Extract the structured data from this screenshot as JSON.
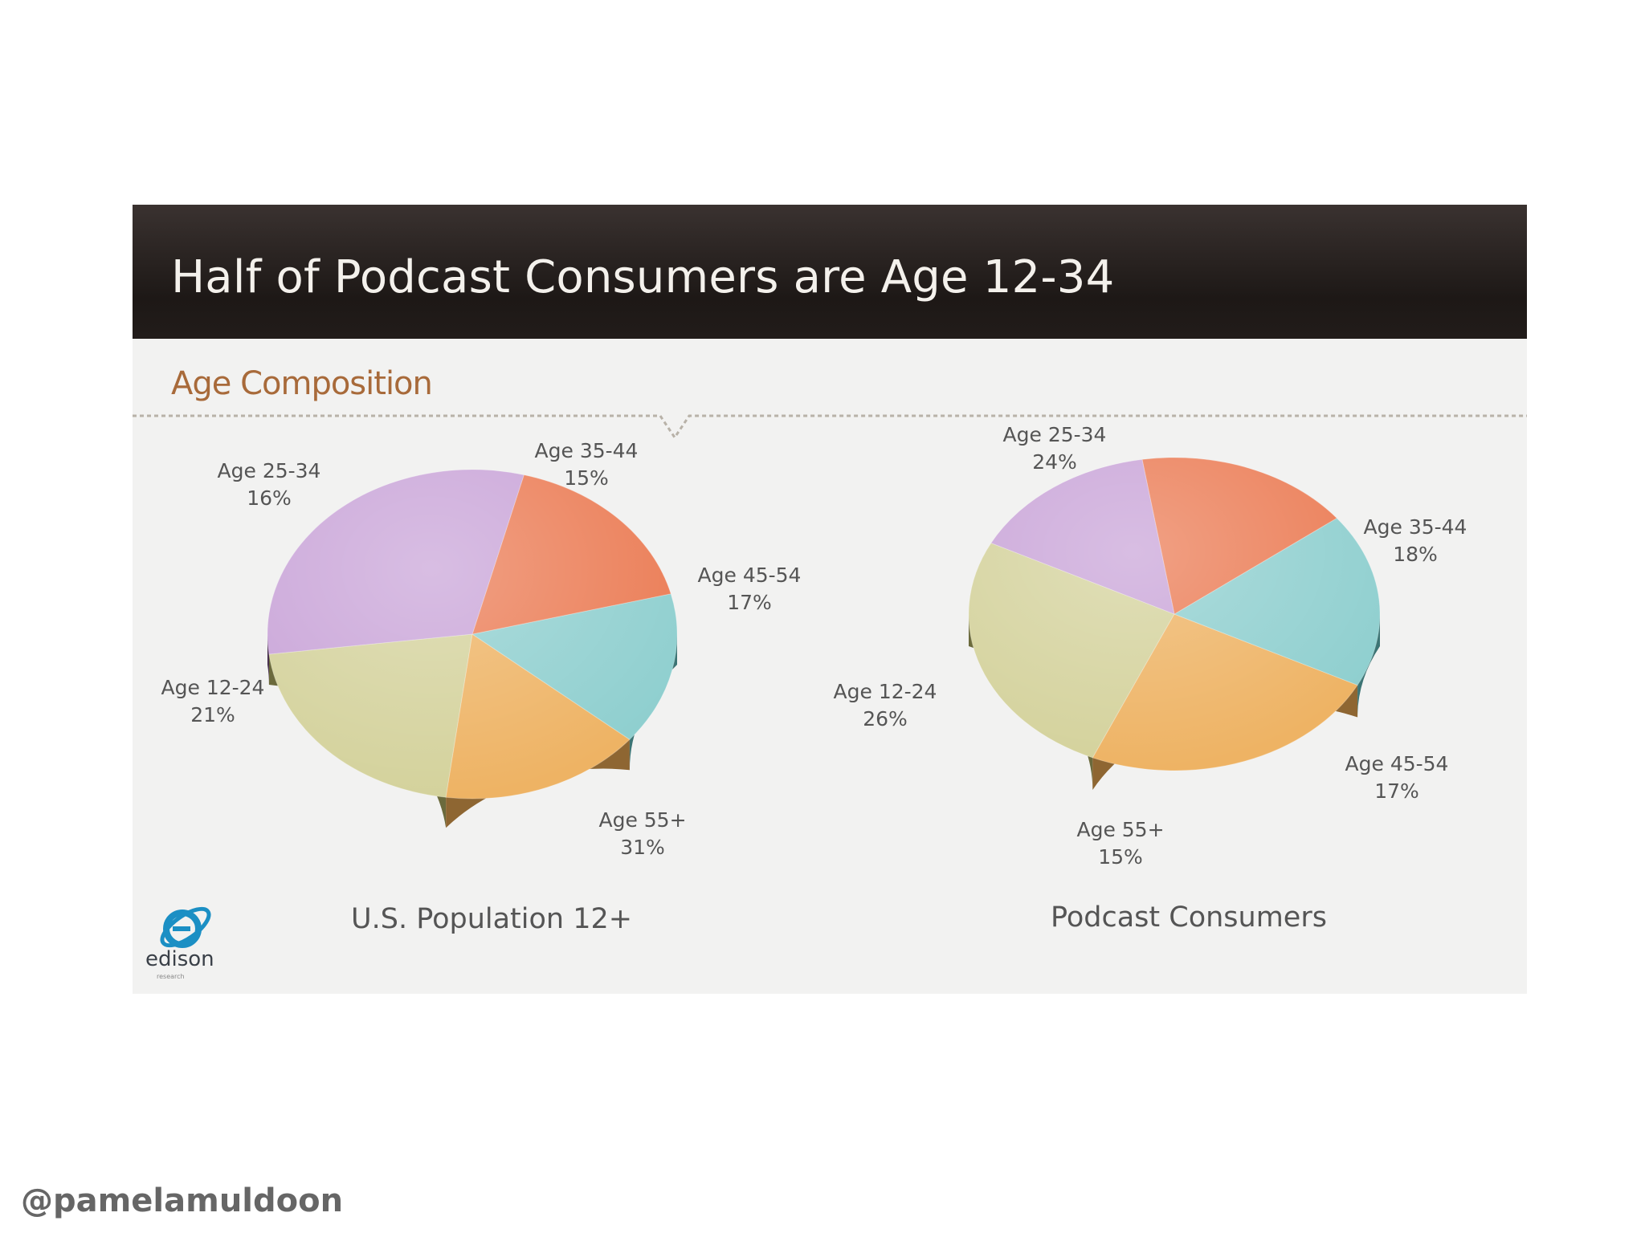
{
  "slide": {
    "title": "Half of Podcast Consumers are Age 12-34",
    "section_heading": "Age Composition",
    "logo_text": "edison",
    "logo_tagline": "research"
  },
  "footer": {
    "handle": "@pamelamuldoon"
  },
  "chart_data": [
    {
      "type": "pie",
      "title": "U.S. Population 12+",
      "categories": [
        "Age 12-24",
        "Age 25-34",
        "Age 35-44",
        "Age 45-54",
        "Age 55+"
      ],
      "values": [
        21,
        16,
        15,
        17,
        31
      ],
      "value_labels": [
        "21%",
        "16%",
        "15%",
        "17%",
        "31%"
      ],
      "colors": [
        "#d4d29c",
        "#eeb364",
        "#8fcfcf",
        "#eb7c55",
        "#c9a4d8"
      ],
      "side_colors": [
        "#6b6a3c",
        "#8e6632",
        "#3c7474",
        "#8a3a22",
        "#3f2645"
      ],
      "start_angle_deg": 187
    },
    {
      "type": "pie",
      "title": "Podcast Consumers",
      "categories": [
        "Age 12-24",
        "Age 25-34",
        "Age 35-44",
        "Age 45-54",
        "Age 55+"
      ],
      "values": [
        26,
        24,
        18,
        17,
        15
      ],
      "value_labels": [
        "26%",
        "24%",
        "18%",
        "17%",
        "15%"
      ],
      "colors": [
        "#d4d29c",
        "#eeb364",
        "#8fcfcf",
        "#eb7c55",
        "#c9a4d8"
      ],
      "side_colors": [
        "#6b6a3c",
        "#8e6632",
        "#3c7474",
        "#8a3a22",
        "#3f2645"
      ],
      "start_angle_deg": 153
    }
  ]
}
